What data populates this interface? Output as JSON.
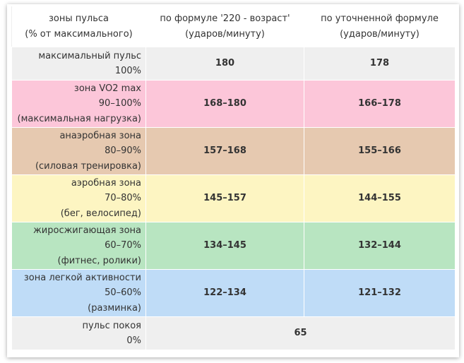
{
  "header": {
    "col1_line1": "зоны пульса",
    "col1_line2": "(% от максимального)",
    "col2_line1": "по формуле '220 - возраст'",
    "col2_line2": "(ударов/минуту)",
    "col3_line1": "по уточненной формуле",
    "col3_line2": "(ударов/минуту)"
  },
  "rows": [
    {
      "lines": [
        "максимальный пульс",
        "100%"
      ],
      "v1": "180",
      "v2": "178",
      "color": "#efefef"
    },
    {
      "lines": [
        "зона VO2 max",
        "90–100%",
        "(максимальная нагрузка)"
      ],
      "v1": "168–180",
      "v2": "166–178",
      "color": "#fcc6d9"
    },
    {
      "lines": [
        "анаэробная зона",
        "80–90%",
        "(силовая тренировка)"
      ],
      "v1": "157–168",
      "v2": "155–166",
      "color": "#e6c9b0"
    },
    {
      "lines": [
        "аэробная зона",
        "70–80%",
        "(бег, велосипед)"
      ],
      "v1": "145–157",
      "v2": "144–155",
      "color": "#fdf5c2"
    },
    {
      "lines": [
        "жиросжигающая зона",
        "60–70%",
        "(фитнес, ролики)"
      ],
      "v1": "134–145",
      "v2": "132–144",
      "color": "#b8e5c1"
    },
    {
      "lines": [
        "зона легкой активности",
        "50–60%",
        "(разминка)"
      ],
      "v1": "122–134",
      "v2": "121–132",
      "color": "#bfdcf7"
    },
    {
      "lines": [
        "пульс покоя",
        "0%"
      ],
      "v1": "65",
      "color": "#efefef"
    }
  ]
}
